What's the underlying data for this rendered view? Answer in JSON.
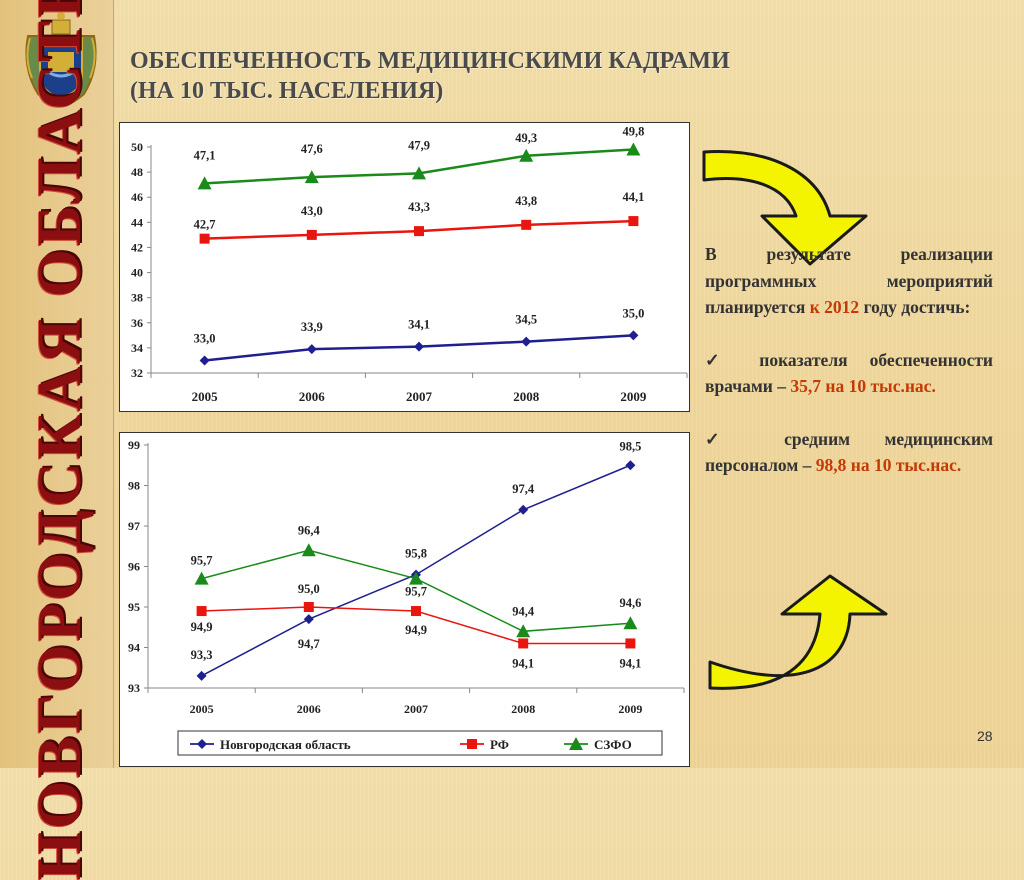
{
  "header": {
    "title_line1": "ОБЕСПЕЧЕННОСТЬ МЕДИЦИНСКИМИ КАДРАМИ",
    "title_line2": "(НА 10 ТЫС. НАСЕЛЕНИЯ)"
  },
  "sidebar": {
    "vertical_title": "НОВГОРОДСКАЯ ОБЛАСТЬ"
  },
  "colors": {
    "novgorod": "#1f1f8f",
    "rf": "#e8160f",
    "szfo": "#1a8a1a",
    "accent": "#c43a07",
    "arrow_fill": "#f4f400"
  },
  "chart_data": [
    {
      "type": "line",
      "x": [
        "2005",
        "2006",
        "2007",
        "2008",
        "2009"
      ],
      "ylim": [
        32,
        50
      ],
      "yticks": [
        "32",
        "34",
        "36",
        "38",
        "40",
        "42",
        "44",
        "46",
        "48",
        "50"
      ],
      "grid": false,
      "legend": "none",
      "series": [
        {
          "key": "szfo",
          "values": [
            47.1,
            47.6,
            47.9,
            49.3,
            49.8
          ],
          "labels": [
            "47,1",
            "47,6",
            "47,9",
            "49,3",
            "49,8"
          ],
          "marker": "triangle"
        },
        {
          "key": "rf",
          "values": [
            42.7,
            43.0,
            43.3,
            43.8,
            44.1
          ],
          "labels": [
            "42,7",
            "43,0",
            "43,3",
            "43,8",
            "44,1"
          ],
          "marker": "square"
        },
        {
          "key": "novgorod",
          "values": [
            33.0,
            33.9,
            34.1,
            34.5,
            35.0
          ],
          "labels": [
            "33,0",
            "33,9",
            "34,1",
            "34,5",
            "35,0"
          ],
          "marker": "diamond"
        }
      ]
    },
    {
      "type": "line",
      "x": [
        "2005",
        "2006",
        "2007",
        "2008",
        "2009"
      ],
      "ylim": [
        93,
        99
      ],
      "yticks": [
        "93",
        "94",
        "95",
        "96",
        "97",
        "98",
        "99"
      ],
      "grid": false,
      "legend": "bottom",
      "series": [
        {
          "key": "novgorod",
          "name": "Новгородская область",
          "values": [
            93.3,
            94.7,
            95.8,
            97.4,
            98.5
          ],
          "labels": [
            "93,3",
            "94,7",
            "95,8",
            "97,4",
            "98,5"
          ],
          "marker": "diamond"
        },
        {
          "key": "rf",
          "name": "РФ",
          "values": [
            94.9,
            95.0,
            94.9,
            94.1,
            94.1
          ],
          "labels": [
            "94,9",
            "95,0",
            "94,9",
            "94,1",
            "94,1"
          ],
          "marker": "square"
        },
        {
          "key": "szfo",
          "name": "СЗФО",
          "values": [
            95.7,
            96.4,
            95.7,
            94.4,
            94.6
          ],
          "labels": [
            "95,7",
            "96,4",
            "95,7",
            "94,4",
            "94,6"
          ],
          "marker": "triangle"
        }
      ]
    }
  ],
  "text_panel": {
    "intro": "В результате реализации программных мероприятий планируется",
    "intro_accent": "к 2012",
    "intro_tail": "году достичь:",
    "bullet1_mark": "✓",
    "bullet1": "показателя обеспеченности врачами –",
    "bullet1_value": "35,7 на 10 тыс.нас.",
    "bullet2_mark": "✓",
    "bullet2": "средним медицинским персоналом –",
    "bullet2_value": "98,8 на 10 тыс.нас."
  },
  "page_number": "28"
}
